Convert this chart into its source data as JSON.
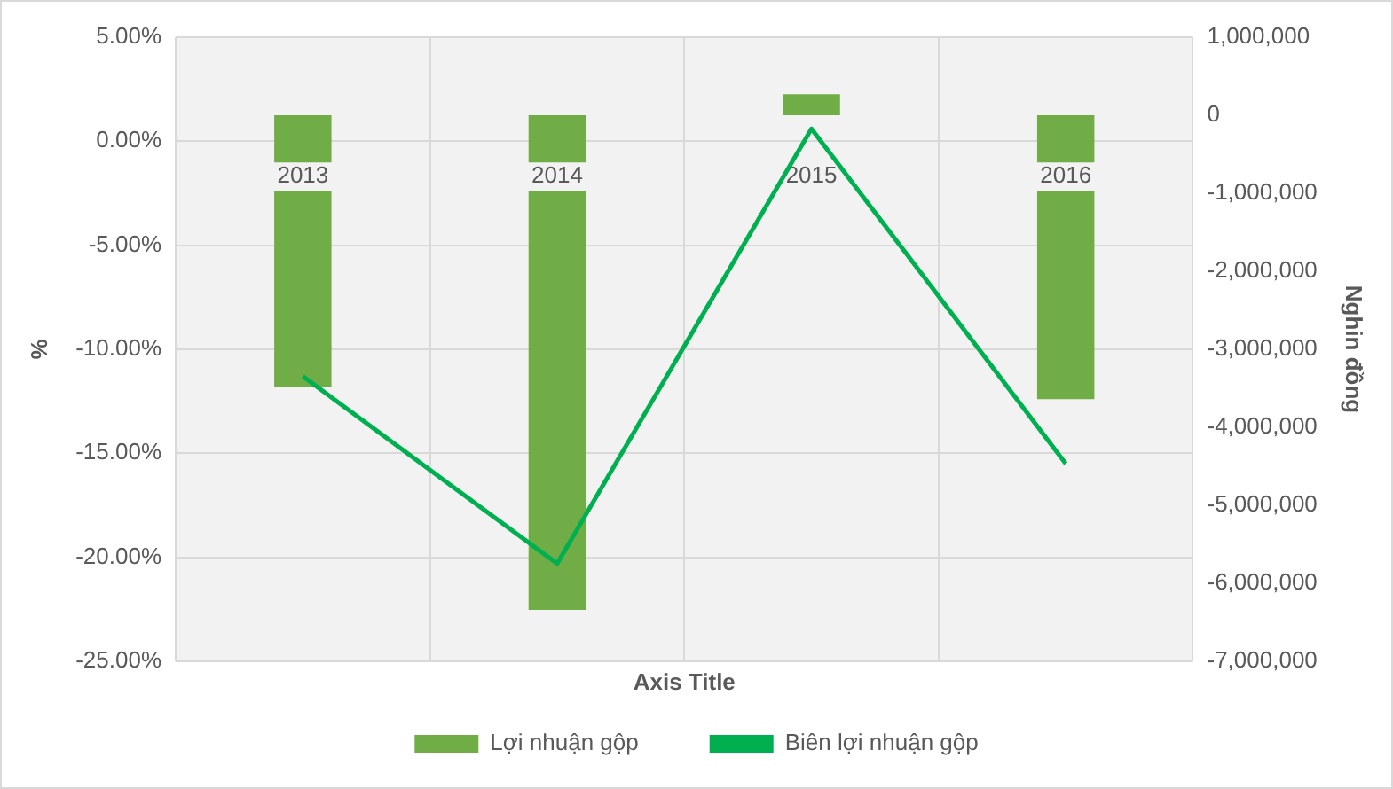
{
  "chart_data": {
    "type": "bar",
    "xlabel": "Axis Title",
    "ylabel": "%",
    "y2label": "Nghin đồng",
    "categories": [
      "2013",
      "2014",
      "2015",
      "2016"
    ],
    "series": [
      {
        "name": "Lợi nhuận gộp",
        "axis": "y2",
        "color": "#70ad47",
        "values": [
          -3490000,
          -6340000,
          270000,
          -3640000
        ]
      },
      {
        "name": "Biên lợi nhuận gộp",
        "type": "line",
        "axis": "y",
        "color": "#00b050",
        "marker": "none",
        "values": [
          -11.3,
          -20.3,
          0.6,
          -15.5
        ]
      }
    ],
    "ylim": [
      -25,
      5
    ],
    "yticks": [
      {
        "value": 5,
        "label": "5.00%"
      },
      {
        "value": 0,
        "label": "0.00%"
      },
      {
        "value": -5,
        "label": "-5.00%"
      },
      {
        "value": -10,
        "label": "-10.00%"
      },
      {
        "value": -15,
        "label": "-15.00%"
      },
      {
        "value": -20,
        "label": "-20.00%"
      },
      {
        "value": -25,
        "label": "-25.00%"
      }
    ],
    "y2lim": [
      -7000000,
      1000000
    ],
    "y2ticks": [
      {
        "value": 1000000,
        "label": "1,000,000"
      },
      0,
      {
        "value": -1000000,
        "label": "-1,000,000"
      },
      {
        "value": -2000000,
        "label": "-2,000,000"
      },
      {
        "value": -3000000,
        "label": "-3,000,000"
      },
      {
        "value": -4000000,
        "label": "-4,000,000"
      },
      {
        "value": -5000000,
        "label": "-5,000,000"
      },
      {
        "value": -6000000,
        "label": "-6,000,000"
      },
      {
        "value": -7000000,
        "label": "-7,000,000"
      }
    ],
    "grid": true,
    "legend": "bottom"
  }
}
